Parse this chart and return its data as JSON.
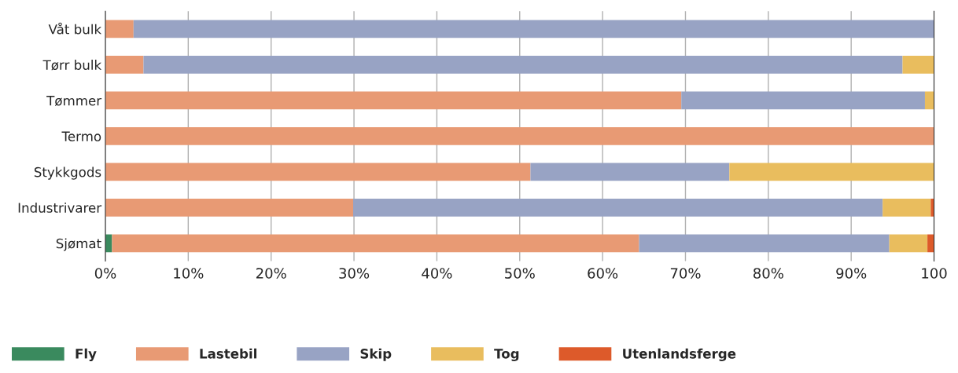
{
  "chart_data": {
    "type": "bar",
    "orientation": "horizontal",
    "stacked": true,
    "categories": [
      "Våt bulk",
      "Tørr bulk",
      "Tømmer",
      "Termo",
      "Stykkgods",
      "Industrivarer",
      "Sjømat"
    ],
    "series": [
      {
        "name": "Fly",
        "color": "#3a8a5e",
        "values": [
          0,
          0,
          0,
          0,
          0,
          0,
          0.8
        ]
      },
      {
        "name": "Lastebil",
        "color": "#e89a74",
        "values": [
          3.4,
          4.6,
          69.5,
          100,
          51.3,
          29.9,
          63.6
        ]
      },
      {
        "name": "Skip",
        "color": "#98a3c4",
        "values": [
          96.6,
          91.6,
          29.4,
          0,
          24.0,
          63.9,
          30.2
        ]
      },
      {
        "name": "Tog",
        "color": "#e9bd5e",
        "values": [
          0,
          3.8,
          1.1,
          0,
          24.7,
          5.8,
          4.6
        ]
      },
      {
        "name": "Utenlandsferge",
        "color": "#dd5a2a",
        "values": [
          0,
          0,
          0,
          0,
          0,
          0.4,
          0.8
        ]
      }
    ],
    "xlim": [
      0,
      100
    ],
    "xticks": [
      {
        "value": 0,
        "label": "0%"
      },
      {
        "value": 10,
        "label": "10%"
      },
      {
        "value": 20,
        "label": "20%"
      },
      {
        "value": 30,
        "label": "30%"
      },
      {
        "value": 40,
        "label": "40%"
      },
      {
        "value": 50,
        "label": "50%"
      },
      {
        "value": 60,
        "label": "60%"
      },
      {
        "value": 70,
        "label": "70%"
      },
      {
        "value": 80,
        "label": "80%"
      },
      {
        "value": 90,
        "label": "90%"
      },
      100
    ],
    "grid": "x",
    "legend": "bottom left"
  }
}
